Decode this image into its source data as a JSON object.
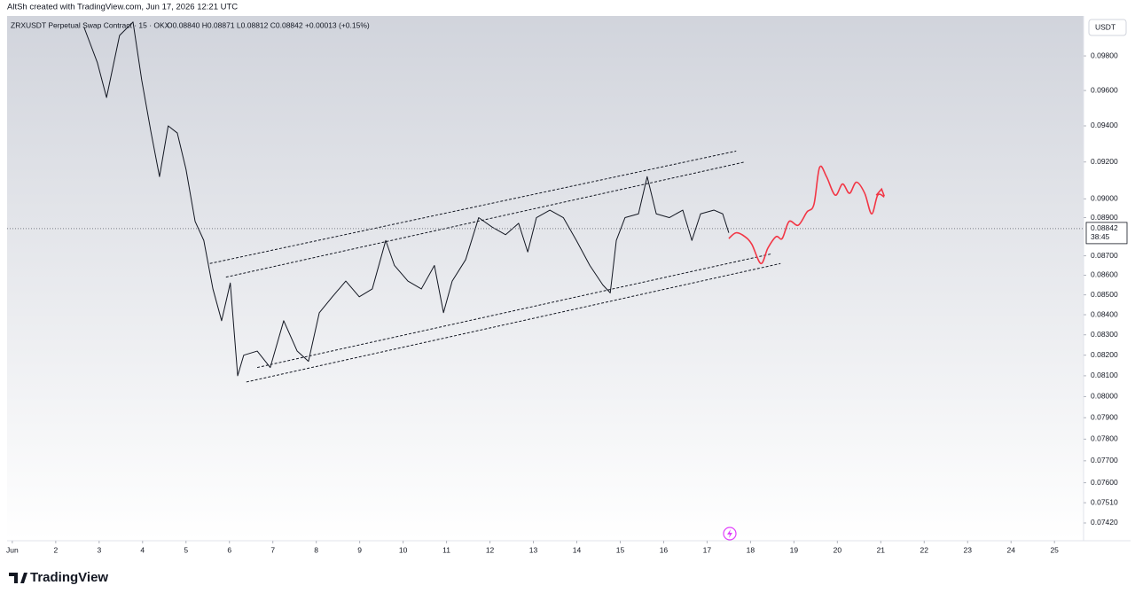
{
  "watermark": "AltSh created with TradingView.com, Jun 17, 2026 12:21 UTC",
  "logo": "TradingView",
  "chart_data": {
    "type": "line",
    "symbol": "ZRXUSDT Perpetual Swap Contract · 15 · OKX",
    "ohlc": "O0.08840  H0.08871  L0.08812  C0.08842  +0.00013 (+0.15%)",
    "currency": "USDT",
    "last_price": 0.08842,
    "countdown": "38:45",
    "log_scale": true,
    "xlim": [
      0.88,
      25.67
    ],
    "ylim": [
      0.07342,
      0.10036
    ],
    "xticks": [
      {
        "value": 1,
        "label": "Jun"
      },
      2,
      3,
      4,
      5,
      6,
      7,
      8,
      9,
      10,
      11,
      12,
      13,
      14,
      15,
      16,
      17,
      18,
      19,
      20,
      21,
      22,
      23,
      24,
      25
    ],
    "yticks": [
      {
        "value": 0.098,
        "label": "0.09800"
      },
      {
        "value": 0.096,
        "label": "0.09600"
      },
      {
        "value": 0.094,
        "label": "0.09400"
      },
      {
        "value": 0.092,
        "label": "0.09200"
      },
      {
        "value": 0.09,
        "label": "0.09000"
      },
      {
        "value": 0.089,
        "label": "0.08900"
      },
      {
        "value": 0.087,
        "label": "0.08700"
      },
      {
        "value": 0.086,
        "label": "0.08600"
      },
      {
        "value": 0.085,
        "label": "0.08500"
      },
      {
        "value": 0.084,
        "label": "0.08400"
      },
      {
        "value": 0.083,
        "label": "0.08300"
      },
      {
        "value": 0.082,
        "label": "0.08200"
      },
      {
        "value": 0.081,
        "label": "0.08100"
      },
      {
        "value": 0.08,
        "label": "0.08000"
      },
      {
        "value": 0.079,
        "label": "0.07900"
      },
      {
        "value": 0.078,
        "label": "0.07800"
      },
      {
        "value": 0.077,
        "label": "0.07700"
      },
      {
        "value": 0.076,
        "label": "0.07600"
      },
      {
        "value": 0.0751,
        "label": "0.07510"
      },
      {
        "value": 0.0742,
        "label": "0.07420"
      }
    ],
    "series": [
      {
        "color": "#131722",
        "style": "solid",
        "x": [
          2.65,
          2.96,
          3.17,
          3.47,
          3.78,
          3.98,
          4.19,
          4.39,
          4.59,
          4.8,
          5.0,
          5.21,
          5.41,
          5.62,
          5.82,
          6.02,
          6.19,
          6.33,
          6.64,
          6.94,
          7.25,
          7.56,
          7.82,
          8.07,
          8.37,
          8.68,
          8.99,
          9.29,
          9.6,
          9.8,
          10.11,
          10.42,
          10.72,
          10.93,
          11.13,
          11.44,
          11.74,
          12.05,
          12.36,
          12.66,
          12.87,
          13.07,
          13.38,
          13.69,
          13.99,
          14.3,
          14.6,
          14.77,
          14.91,
          15.11,
          15.42,
          15.62,
          15.83,
          16.13,
          16.44,
          16.65,
          16.85,
          17.16,
          17.36,
          17.5
        ],
        "values": [
          0.0997,
          0.0976,
          0.0956,
          0.0992,
          0.1,
          0.0966,
          0.0937,
          0.0912,
          0.094,
          0.0936,
          0.0916,
          0.0888,
          0.0878,
          0.0853,
          0.0837,
          0.0856,
          0.081,
          0.082,
          0.0822,
          0.0814,
          0.0837,
          0.0822,
          0.0817,
          0.0841,
          0.0849,
          0.0857,
          0.0849,
          0.0853,
          0.0878,
          0.0865,
          0.0857,
          0.0853,
          0.0865,
          0.0841,
          0.0857,
          0.0868,
          0.089,
          0.0885,
          0.0881,
          0.0887,
          0.0872,
          0.089,
          0.0894,
          0.089,
          0.0878,
          0.0865,
          0.0855,
          0.0851,
          0.0878,
          0.089,
          0.0892,
          0.0912,
          0.0892,
          0.089,
          0.0894,
          0.0878,
          0.0892,
          0.0894,
          0.0892,
          0.0882
        ]
      },
      {
        "color": "#131722",
        "style": "dashed",
        "x": [
          5.55,
          17.67
        ],
        "values": [
          0.0866,
          0.0926
        ]
      },
      {
        "color": "#131722",
        "style": "dashed",
        "x": [
          5.92,
          17.87
        ],
        "values": [
          0.0859,
          0.092
        ]
      },
      {
        "color": "#131722",
        "style": "dashed",
        "x": [
          6.64,
          18.48
        ],
        "values": [
          0.0814,
          0.0871
        ]
      },
      {
        "color": "#131722",
        "style": "dashed",
        "x": [
          6.39,
          18.69
        ],
        "values": [
          0.0807,
          0.0866
        ]
      },
      {
        "color": "#f23645",
        "style": "curve",
        "x": [
          17.5,
          17.67,
          17.87,
          18.03,
          18.24,
          18.4,
          18.59,
          18.73,
          18.89,
          19.1,
          19.3,
          19.46,
          19.59,
          19.75,
          19.95,
          20.12,
          20.28,
          20.44,
          20.63,
          20.79,
          20.93,
          21.08
        ],
        "values": [
          0.0879,
          0.0882,
          0.088,
          0.0876,
          0.0866,
          0.0874,
          0.088,
          0.0879,
          0.0888,
          0.0886,
          0.0893,
          0.0897,
          0.0917,
          0.0912,
          0.0902,
          0.0908,
          0.0903,
          0.0909,
          0.0903,
          0.0892,
          0.0902,
          0.0901
        ]
      }
    ]
  }
}
